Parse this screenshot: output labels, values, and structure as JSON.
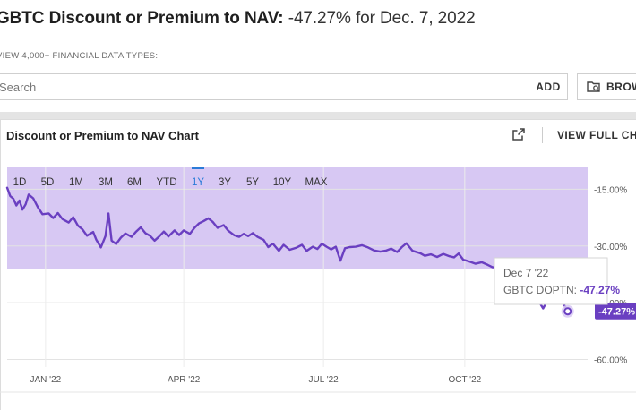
{
  "header": {
    "title_bold": "GBTC Discount or Premium to NAV:",
    "title_value": "-47.27% for Dec. 7, 2022"
  },
  "search_section": {
    "subhead": "VIEW 4,000+ FINANCIAL DATA TYPES:",
    "search_placeholder": "Search",
    "add_label": "ADD",
    "browse_label": "BROWSE"
  },
  "chart_panel": {
    "title": "Discount or Premium to NAV Chart",
    "full_chart_label": "VIEW FULL CHART",
    "share_icon": "external-link-icon"
  },
  "chart_data": {
    "type": "line",
    "range_buttons": [
      "1D",
      "5D",
      "1M",
      "3M",
      "6M",
      "YTD",
      "1Y",
      "3Y",
      "5Y",
      "10Y",
      "MAX"
    ],
    "active_range": "1Y",
    "x_tick_labels": [
      "JAN '22",
      "APR '22",
      "JUL '22",
      "OCT '22"
    ],
    "y_tick_labels": [
      "-15.00%",
      "-30.00%",
      "-45.00%",
      "-60.00%"
    ],
    "y_ticks": [
      -15,
      -30,
      -45,
      -60
    ],
    "ylim": [
      -62,
      -9
    ],
    "xlim": [
      "2021-12-07",
      "2022-12-20"
    ],
    "x_ticks": [
      "2022-01-01",
      "2022-04-01",
      "2022-07-01",
      "2022-10-01"
    ],
    "series": [
      {
        "name": "GBTC DOPTN",
        "color": "#6a3fc1",
        "points": [
          [
            "2021-12-07",
            -14.6
          ],
          [
            "2021-12-09",
            -16.8
          ],
          [
            "2021-12-11",
            -17.5
          ],
          [
            "2021-12-13",
            -19.3
          ],
          [
            "2021-12-15",
            -18.0
          ],
          [
            "2021-12-17",
            -20.4
          ],
          [
            "2021-12-19",
            -19.0
          ],
          [
            "2021-12-21",
            -16.4
          ],
          [
            "2021-12-24",
            -17.4
          ],
          [
            "2021-12-27",
            -19.8
          ],
          [
            "2021-12-30",
            -21.6
          ],
          [
            "2022-01-03",
            -21.4
          ],
          [
            "2022-01-06",
            -22.6
          ],
          [
            "2022-01-09",
            -21.3
          ],
          [
            "2022-01-12",
            -22.9
          ],
          [
            "2022-01-16",
            -23.8
          ],
          [
            "2022-01-19",
            -22.4
          ],
          [
            "2022-01-22",
            -24.6
          ],
          [
            "2022-01-25",
            -25.6
          ],
          [
            "2022-01-28",
            -27.3
          ],
          [
            "2022-02-01",
            -26.3
          ],
          [
            "2022-02-03",
            -28.3
          ],
          [
            "2022-02-06",
            -30.4
          ],
          [
            "2022-02-09",
            -27.4
          ],
          [
            "2022-02-11",
            -21.4
          ],
          [
            "2022-02-13",
            -28.6
          ],
          [
            "2022-02-16",
            -29.5
          ],
          [
            "2022-02-19",
            -27.8
          ],
          [
            "2022-02-22",
            -26.7
          ],
          [
            "2022-02-26",
            -27.6
          ],
          [
            "2022-03-01",
            -26.2
          ],
          [
            "2022-03-04",
            -25.1
          ],
          [
            "2022-03-07",
            -26.6
          ],
          [
            "2022-03-10",
            -27.3
          ],
          [
            "2022-03-13",
            -28.6
          ],
          [
            "2022-03-16",
            -27.5
          ],
          [
            "2022-03-19",
            -26.2
          ],
          [
            "2022-03-22",
            -27.5
          ],
          [
            "2022-03-26",
            -25.9
          ],
          [
            "2022-03-29",
            -27.1
          ],
          [
            "2022-04-01",
            -25.9
          ],
          [
            "2022-04-05",
            -26.8
          ],
          [
            "2022-04-08",
            -25.2
          ],
          [
            "2022-04-11",
            -24.0
          ],
          [
            "2022-04-14",
            -23.4
          ],
          [
            "2022-04-17",
            -22.7
          ],
          [
            "2022-04-20",
            -23.7
          ],
          [
            "2022-04-23",
            -25.2
          ],
          [
            "2022-04-27",
            -24.5
          ],
          [
            "2022-04-30",
            -26.0
          ],
          [
            "2022-05-04",
            -27.2
          ],
          [
            "2022-05-07",
            -27.6
          ],
          [
            "2022-05-10",
            -26.8
          ],
          [
            "2022-05-13",
            -27.4
          ],
          [
            "2022-05-16",
            -26.6
          ],
          [
            "2022-05-19",
            -27.6
          ],
          [
            "2022-05-23",
            -28.4
          ],
          [
            "2022-05-26",
            -30.3
          ],
          [
            "2022-05-29",
            -29.4
          ],
          [
            "2022-06-02",
            -31.3
          ],
          [
            "2022-06-05",
            -29.7
          ],
          [
            "2022-06-09",
            -31.0
          ],
          [
            "2022-06-13",
            -30.5
          ],
          [
            "2022-06-17",
            -29.7
          ],
          [
            "2022-06-20",
            -31.3
          ],
          [
            "2022-06-24",
            -30.2
          ],
          [
            "2022-06-27",
            -30.8
          ],
          [
            "2022-06-30",
            -29.4
          ],
          [
            "2022-07-03",
            -30.2
          ],
          [
            "2022-07-06",
            -30.9
          ],
          [
            "2022-07-09",
            -30.2
          ],
          [
            "2022-07-12",
            -33.9
          ],
          [
            "2022-07-15",
            -30.6
          ],
          [
            "2022-07-18",
            -30.3
          ],
          [
            "2022-07-22",
            -30.2
          ],
          [
            "2022-07-26",
            -29.8
          ],
          [
            "2022-07-30",
            -30.4
          ],
          [
            "2022-08-03",
            -31.2
          ],
          [
            "2022-08-07",
            -31.5
          ],
          [
            "2022-08-11",
            -31.2
          ],
          [
            "2022-08-14",
            -30.7
          ],
          [
            "2022-08-18",
            -31.6
          ],
          [
            "2022-08-21",
            -30.3
          ],
          [
            "2022-08-24",
            -29.3
          ],
          [
            "2022-08-28",
            -31.3
          ],
          [
            "2022-09-02",
            -31.9
          ],
          [
            "2022-09-05",
            -32.6
          ],
          [
            "2022-09-09",
            -32.2
          ],
          [
            "2022-09-13",
            -32.9
          ],
          [
            "2022-09-17",
            -32.1
          ],
          [
            "2022-09-21",
            -32.7
          ],
          [
            "2022-09-24",
            -33.0
          ],
          [
            "2022-09-27",
            -32.0
          ],
          [
            "2022-09-30",
            -33.6
          ],
          [
            "2022-10-04",
            -34.1
          ],
          [
            "2022-10-08",
            -34.7
          ],
          [
            "2022-10-12",
            -34.3
          ],
          [
            "2022-10-16",
            -35.0
          ],
          [
            "2022-10-19",
            -35.6
          ],
          [
            "2022-10-22",
            -35.7
          ],
          [
            "2022-10-25",
            -34.9
          ],
          [
            "2022-10-29",
            -35.2
          ],
          [
            "2022-11-02",
            -35.9
          ],
          [
            "2022-11-06",
            -37.0
          ],
          [
            "2022-11-10",
            -39.5
          ],
          [
            "2022-11-14",
            -42.0
          ],
          [
            "2022-11-18",
            -44.5
          ],
          [
            "2022-11-21",
            -46.5
          ],
          [
            "2022-11-24",
            -44.3
          ],
          [
            "2022-11-27",
            -43.3
          ],
          [
            "2022-11-30",
            -45.2
          ],
          [
            "2022-12-03",
            -44.5
          ],
          [
            "2022-12-05",
            -45.8
          ],
          [
            "2022-12-07",
            -47.27
          ]
        ]
      }
    ],
    "tooltip": {
      "date": "Dec 7 '22",
      "label": "GBTC DOPTN:",
      "value": "-47.27%"
    },
    "end_value_label": "-47.27%",
    "legend": "none",
    "grid": "horizontal"
  }
}
